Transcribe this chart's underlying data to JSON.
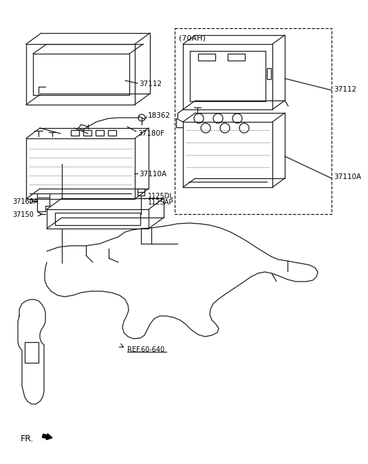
{
  "bg_color": "#ffffff",
  "line_color": "#1a1a1a",
  "lw": 0.9,
  "labels": {
    "37112_left": "37112",
    "18362": "18362",
    "37180F": "37180F",
    "37110A_left": "37110A",
    "37160A": "37160A",
    "37150": "37150",
    "1125DL": "1125DL",
    "1125AP": "1125AP",
    "37112_right": "37112",
    "37110A_right": "37110A",
    "70AH": "(70AH)",
    "REF": "REF.60-640",
    "FR": "FR."
  }
}
